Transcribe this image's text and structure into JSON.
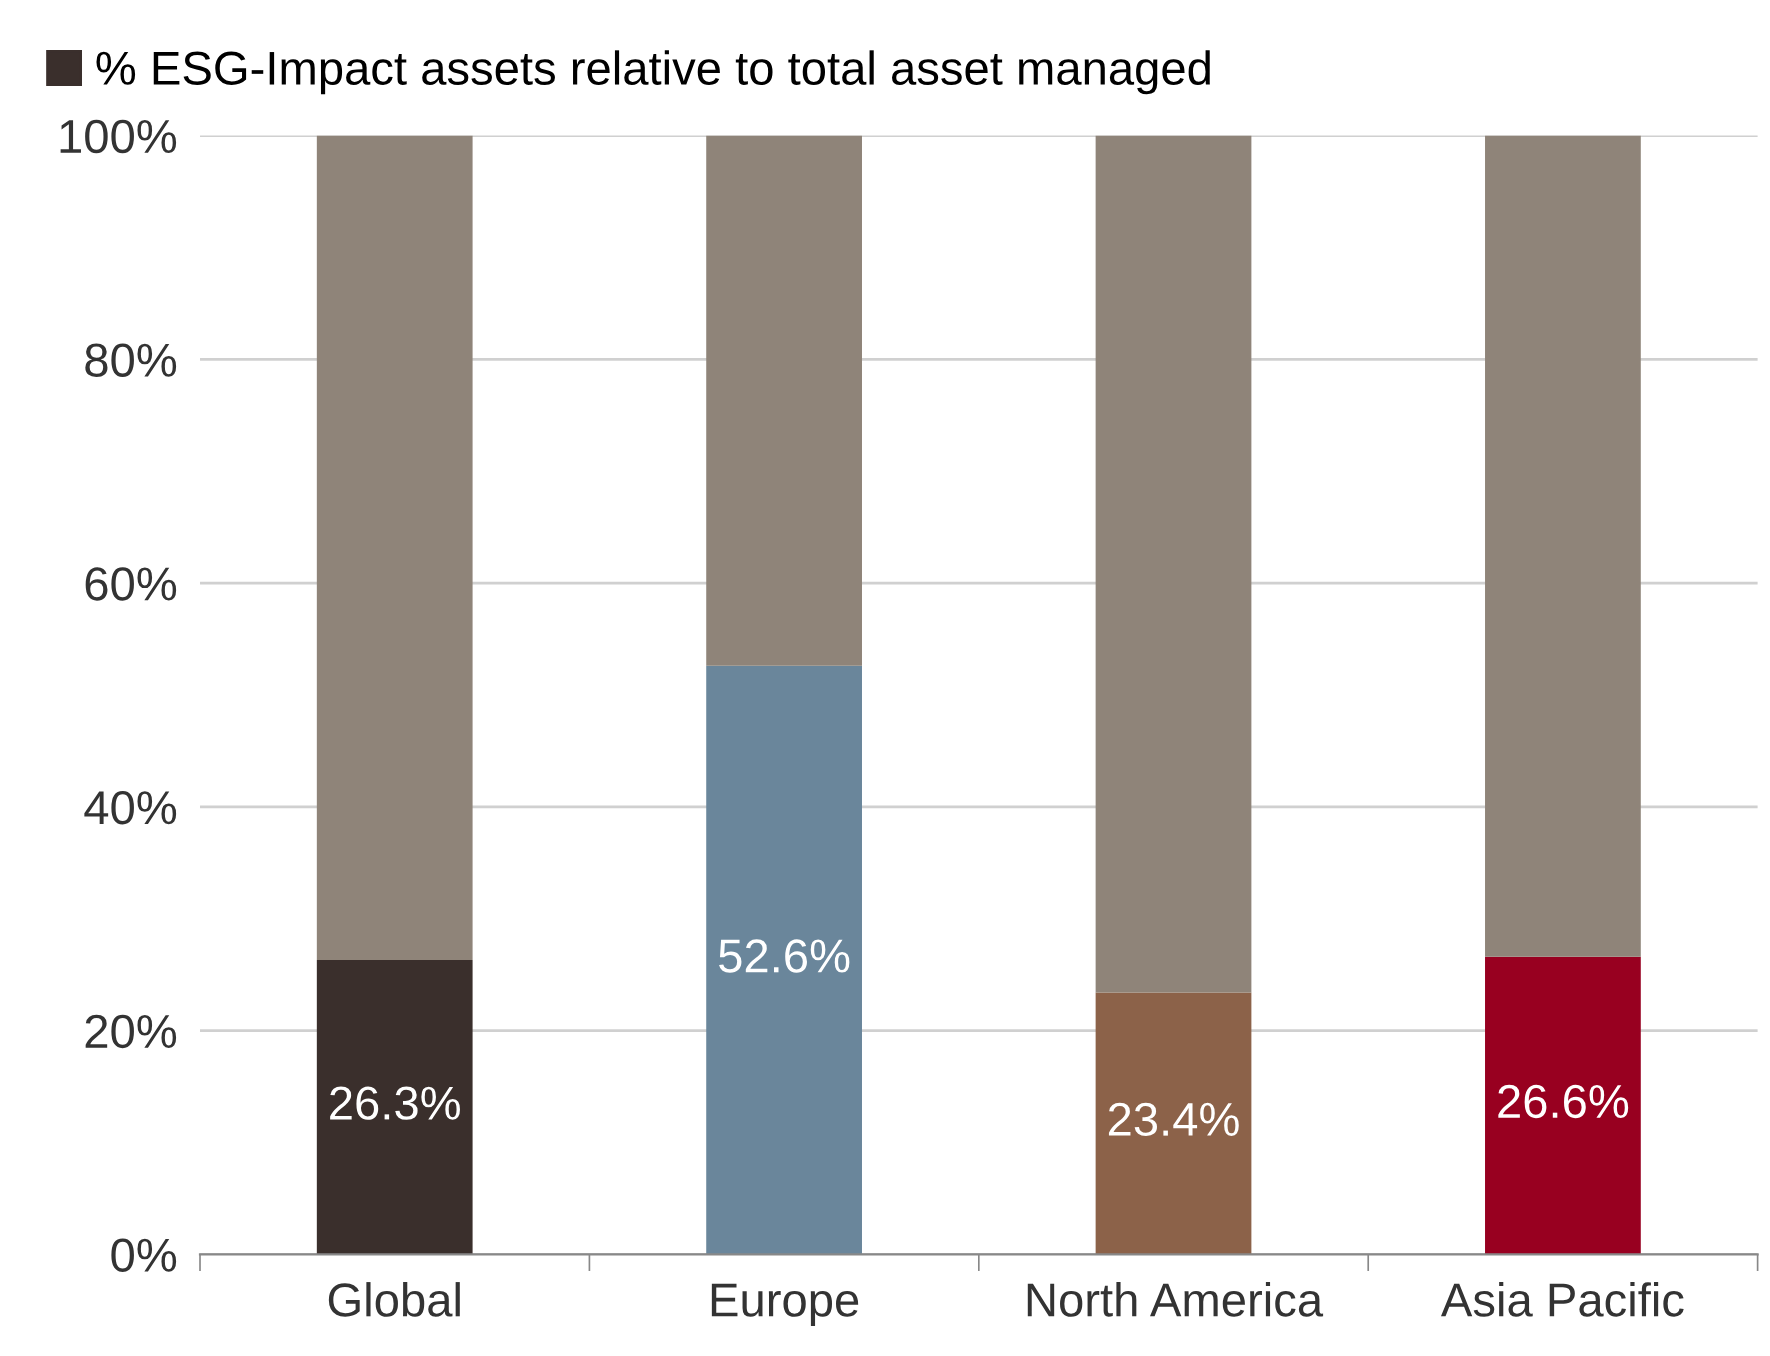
{
  "chart_data": {
    "type": "bar",
    "stacked": true,
    "categories": [
      "Global",
      "Europe",
      "North America",
      "Asia Pacific"
    ],
    "series": [
      {
        "name": "% ESG-Impact assets relative to total asset managed",
        "color": "#3a2f2c",
        "colors": [
          "#3a2f2c",
          "#6a869b",
          "#8c6249",
          "#980020"
        ],
        "values": [
          26.3,
          52.6,
          23.4,
          26.6
        ],
        "value_labels": [
          "26.3%",
          "52.6%",
          "23.4%",
          "26.6%"
        ]
      },
      {
        "color": "#8f8479",
        "values": [
          73.7,
          47.4,
          76.6,
          73.4
        ]
      }
    ],
    "ylim": [
      0,
      100
    ],
    "yticks": [
      {
        "value": 0,
        "label": "0%"
      },
      {
        "value": 20,
        "label": "20%"
      },
      {
        "value": 40,
        "label": "40%"
      },
      {
        "value": 60,
        "label": "60%"
      },
      {
        "value": 80,
        "label": "80%"
      },
      {
        "value": 100,
        "label": "100%"
      }
    ],
    "grid": "y",
    "legend": "top left"
  }
}
